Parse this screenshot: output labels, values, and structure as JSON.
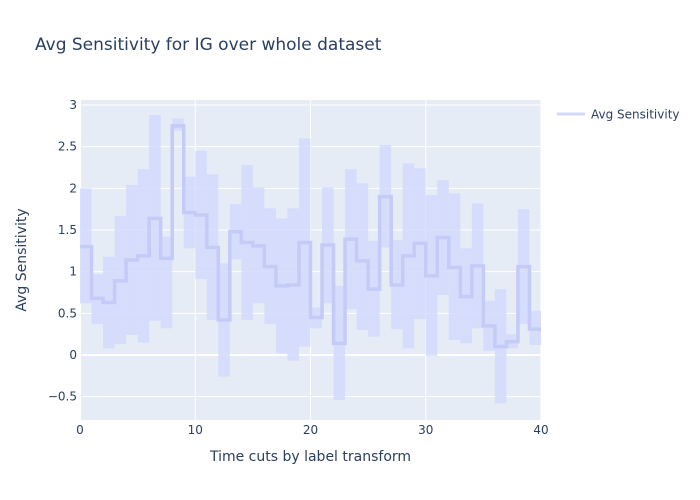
{
  "chart_data": {
    "type": "line",
    "title": "Avg Sensitivity for IG over whole dataset",
    "xlabel": "Time cuts by label transform",
    "ylabel": "Avg Sensitivity",
    "xlim": [
      0,
      40
    ],
    "ylim": [
      -0.78,
      3.06
    ],
    "x_ticks": [
      0,
      10,
      20,
      30,
      40
    ],
    "y_ticks": [
      -0.5,
      0,
      0.5,
      1,
      1.5,
      2,
      2.5,
      3
    ],
    "x_tick_labels": [
      "0",
      "10",
      "20",
      "30",
      "40"
    ],
    "y_tick_labels": [
      "−0.5",
      "0",
      "0.5",
      "1",
      "1.5",
      "2",
      "2.5",
      "3"
    ],
    "grid": true,
    "legend_position": "top-right",
    "line_shape": "step",
    "series": [
      {
        "name": "Avg Sensitivity",
        "color": "#d4d9fb",
        "band_color": "#d4d9fb",
        "x": [
          0,
          1,
          2,
          3,
          4,
          5,
          6,
          7,
          8,
          9,
          10,
          11,
          12,
          13,
          14,
          15,
          16,
          17,
          18,
          19,
          20,
          21,
          22,
          23,
          24,
          25,
          26,
          27,
          28,
          29,
          30,
          31,
          32,
          33,
          34,
          35,
          36,
          37,
          38,
          39,
          40
        ],
        "values": [
          1.3,
          0.68,
          0.63,
          0.89,
          1.14,
          1.19,
          1.64,
          1.16,
          2.75,
          1.71,
          1.68,
          1.29,
          0.42,
          1.48,
          1.35,
          1.31,
          1.06,
          0.83,
          0.84,
          1.35,
          0.45,
          1.32,
          0.14,
          1.39,
          1.13,
          0.79,
          1.9,
          0.84,
          1.19,
          1.34,
          0.95,
          1.41,
          1.05,
          0.7,
          1.07,
          0.35,
          0.1,
          0.16,
          1.06,
          0.31,
          0.31
        ],
        "upper": [
          2.0,
          0.97,
          1.18,
          1.67,
          2.04,
          2.23,
          2.88,
          1.42,
          2.84,
          2.14,
          2.45,
          2.17,
          1.1,
          1.81,
          2.28,
          2.01,
          1.76,
          1.64,
          1.76,
          2.6,
          0.57,
          2.01,
          0.83,
          2.23,
          2.06,
          1.37,
          2.52,
          1.38,
          2.3,
          2.24,
          1.92,
          2.1,
          1.94,
          1.28,
          1.82,
          0.65,
          0.79,
          0.25,
          1.75,
          0.53,
          0.53
        ],
        "lower": [
          0.62,
          0.37,
          0.08,
          0.13,
          0.24,
          0.15,
          0.41,
          0.32,
          2.69,
          1.28,
          0.91,
          0.42,
          -0.26,
          1.15,
          0.42,
          0.62,
          0.37,
          0.02,
          -0.07,
          0.1,
          0.32,
          0.62,
          -0.54,
          0.55,
          0.3,
          0.22,
          1.29,
          0.31,
          0.08,
          0.43,
          -0.01,
          0.72,
          0.18,
          0.14,
          0.32,
          0.05,
          -0.58,
          0.08,
          0.37,
          0.12,
          0.12
        ]
      }
    ]
  }
}
